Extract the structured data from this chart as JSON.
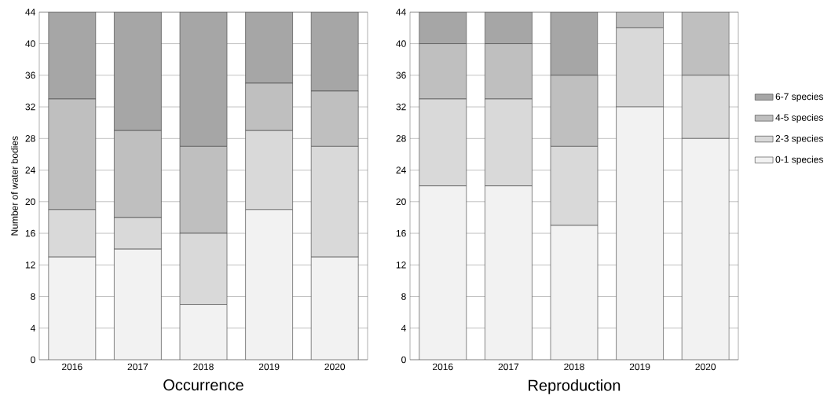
{
  "chart_data": [
    {
      "type": "bar",
      "stacked": true,
      "xlabel": "Occurrence",
      "ylabel": "Number of water bodies",
      "categories": [
        "2016",
        "2017",
        "2018",
        "2019",
        "2020"
      ],
      "ylim": [
        0,
        44
      ],
      "yticks": [
        0,
        4,
        8,
        12,
        16,
        20,
        24,
        28,
        32,
        36,
        40,
        44
      ],
      "grid": "y",
      "legend": false,
      "series": [
        {
          "color": "#f2f2f2",
          "values": [
            13,
            14,
            7,
            19,
            13
          ]
        },
        {
          "color": "#d9d9d9",
          "values": [
            6,
            4,
            9,
            10,
            14
          ]
        },
        {
          "color": "#bfbfbf",
          "values": [
            14,
            11,
            11,
            6,
            7
          ]
        },
        {
          "color": "#a6a6a6",
          "values": [
            11,
            15,
            17,
            9,
            10
          ]
        }
      ]
    },
    {
      "type": "bar",
      "stacked": true,
      "xlabel": "Reproduction",
      "categories": [
        "2016",
        "2017",
        "2018",
        "2019",
        "2020"
      ],
      "ylim": [
        0,
        44
      ],
      "yticks": [
        0,
        4,
        8,
        12,
        16,
        20,
        24,
        28,
        32,
        36,
        40,
        44
      ],
      "grid": "y",
      "legend": "right",
      "series": [
        {
          "name": "0-1 species",
          "color": "#f2f2f2",
          "values": [
            22,
            22,
            17,
            32,
            28
          ]
        },
        {
          "name": "2-3 species",
          "color": "#d9d9d9",
          "values": [
            11,
            11,
            10,
            10,
            8
          ]
        },
        {
          "name": "4-5 species",
          "color": "#bfbfbf",
          "values": [
            7,
            7,
            9,
            2,
            8
          ]
        },
        {
          "name": "6-7 species",
          "color": "#a6a6a6",
          "values": [
            4,
            4,
            8,
            0,
            0
          ]
        }
      ]
    }
  ]
}
